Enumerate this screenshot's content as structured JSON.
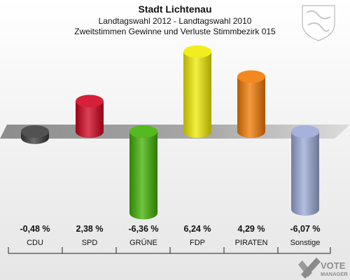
{
  "header": {
    "title": "Stadt Lichtenau",
    "subtitle1": "Landtagswahl 2012 - Landtagswahl 2010",
    "subtitle2": "Zweitstimmen Gewinne und Verluste Stimmbezirk 015"
  },
  "watermark": {
    "text_line1": "VOTE",
    "text_line2": "MANAGER"
  },
  "chart_data": {
    "type": "bar",
    "categories": [
      "CDU",
      "SPD",
      "GRÜNE",
      "FDP",
      "PIRATEN",
      "Sonstige"
    ],
    "values": [
      -0.48,
      2.38,
      -6.36,
      6.24,
      4.29,
      -6.07
    ],
    "value_labels": [
      "-0,48 %",
      "2,38 %",
      "-6,36 %",
      "6,24 %",
      "4,29 %",
      "-6,07 %"
    ],
    "colors": [
      "#3a3a3a",
      "#d0001e",
      "#3fb000",
      "#f0ea00",
      "#f07800",
      "#9aa8d6"
    ],
    "title": "Stadt Lichtenau",
    "ylim": [
      -7,
      7
    ]
  }
}
